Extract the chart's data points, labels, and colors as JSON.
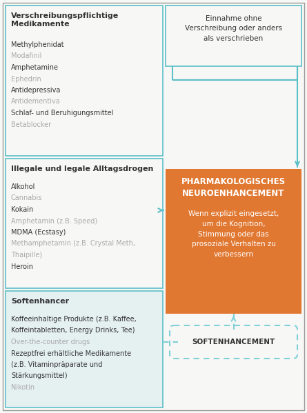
{
  "bg_color": "#f7f7f5",
  "outer_border_color": "#999999",
  "teal_color": "#5bbfc8",
  "orange_color": "#e07832",
  "dashed_color": "#7fd0d8",
  "gray_text": "#aaaaaa",
  "dark_text": "#333333",
  "box1_title": "Verschreibungspflichtige\nMedikamente",
  "box1_items": [
    {
      "text": "Methylphenidat",
      "gray": false
    },
    {
      "text": "Modafinil",
      "gray": true
    },
    {
      "text": "Amphetamine",
      "gray": false
    },
    {
      "text": "Ephedrin",
      "gray": true
    },
    {
      "text": "Antidepressiva",
      "gray": false
    },
    {
      "text": "Antidementiva",
      "gray": true
    },
    {
      "text": "Schlaf- und Beruhigungsmittel",
      "gray": false
    },
    {
      "text": "Betablocker",
      "gray": true
    }
  ],
  "box2_title": "Illegale und legale Alltagsdrogen",
  "box2_items": [
    {
      "text": "Alkohol",
      "gray": false
    },
    {
      "text": "Cannabis",
      "gray": true
    },
    {
      "text": "Kokain",
      "gray": false
    },
    {
      "text": "Amphetamin (z.B. Speed)",
      "gray": true
    },
    {
      "text": "MDMA (Ecstasy)",
      "gray": false
    },
    {
      "text": "Methamphetamin (z.B. Crystal Meth,\nThaipille)",
      "gray": true
    },
    {
      "text": "Heroin",
      "gray": false
    }
  ],
  "box3_title": "Softenhancer",
  "box3_items": [
    {
      "text": "Koffeeinhaltige Produkte (z.B. Kaffee,\nKoffeintabletten, Energy Drinks, Tee)",
      "gray": false
    },
    {
      "text": "Over-the-counter drugs",
      "gray": true
    },
    {
      "text": "Rezeptfrei erhältliche Medikamente\n(z.B. Vitaminpräparate und\nStärkungsmittel)",
      "gray": false
    },
    {
      "text": "Nikotin",
      "gray": true
    }
  ],
  "callout_text": "Einnahme ohne\nVerschreibung oder anders\nals verschrieben",
  "pharma_title": "PHARMAKOLOGISCHES\nNEUROENHANCEMENT",
  "pharma_body": "Wenn explizit eingesetzt,\num die Kognition,\nStimmung oder das\nprosoziale Verhalten zu\nverbessern",
  "soft_label": "SOFTENHANCEMENT"
}
